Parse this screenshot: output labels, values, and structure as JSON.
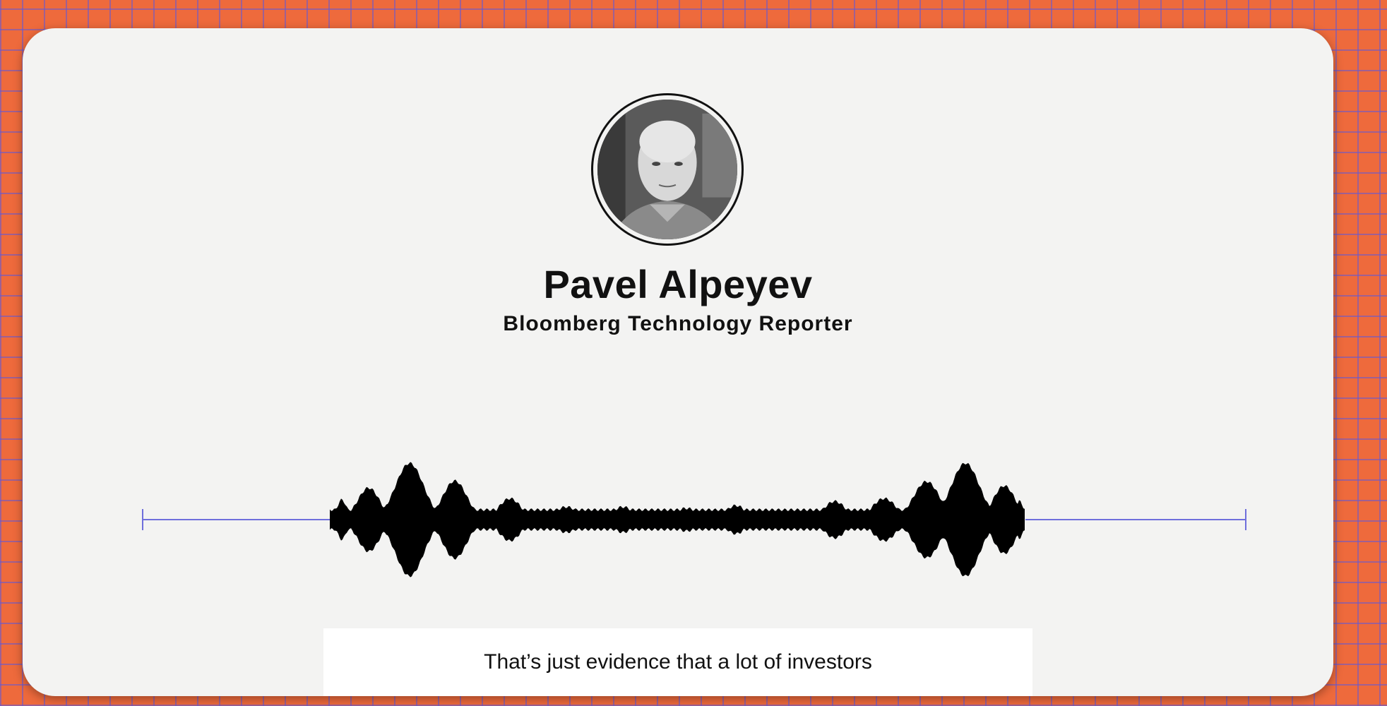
{
  "speaker": {
    "name": "Pavel Alpeyev",
    "title": "Bloomberg Technology Reporter",
    "avatar_icon": "person-portrait-icon"
  },
  "subtitle": {
    "text": "That’s just evidence that a lot of investors"
  },
  "audio_waveform": {
    "icon": "audio-waveform-icon",
    "color": "#000000",
    "track_color": "#6f6fdc"
  },
  "colors": {
    "background": "#ee6a3c",
    "grid": "#5c58dc",
    "card": "#f3f3f2"
  }
}
